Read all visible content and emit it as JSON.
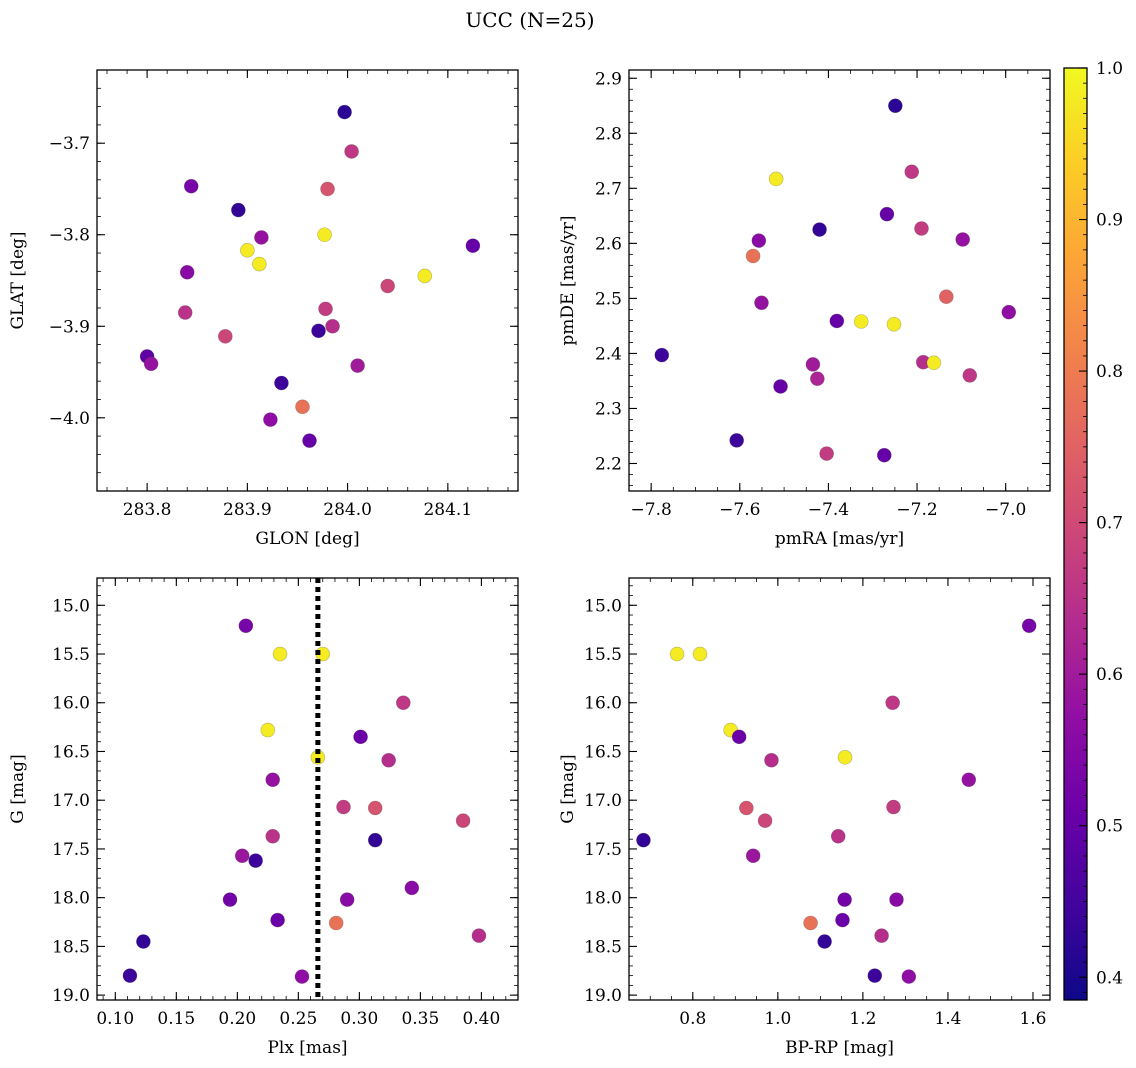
{
  "chart_data": {
    "type": "scatter",
    "title": "UCC (N=25)",
    "colorbar": {
      "min": 0.385,
      "max": 1.0,
      "ticks": [
        0.4,
        0.5,
        0.6,
        0.7,
        0.8,
        0.9,
        1.0
      ],
      "tick_labels": [
        "0.4",
        "0.5",
        "0.6",
        "0.7",
        "0.8",
        "0.9",
        "1.0"
      ],
      "colormap": "plasma"
    },
    "panels": [
      {
        "xlabel": "GLON [deg]",
        "ylabel": "GLAT [deg]",
        "xlim": [
          283.75,
          284.17
        ],
        "ylim": [
          -4.08,
          -3.62
        ],
        "y_inverted": false,
        "xticks": [
          283.8,
          283.9,
          284.0,
          284.1
        ],
        "xtick_labels": [
          "283.8",
          "283.9",
          "284.0",
          "284.1"
        ],
        "yticks": [
          -3.7,
          -3.8,
          -3.9,
          -4.0
        ],
        "ytick_labels": [
          "−3.7",
          "−3.8",
          "−3.9",
          "−4.0"
        ],
        "xminor": 0.02,
        "yminor": 0.02,
        "points": [
          {
            "x": 283.997,
            "y": -3.666,
            "c": 0.42
          },
          {
            "x": 284.004,
            "y": -3.709,
            "c": 0.66
          },
          {
            "x": 283.844,
            "y": -3.747,
            "c": 0.53
          },
          {
            "x": 283.98,
            "y": -3.75,
            "c": 0.72
          },
          {
            "x": 283.891,
            "y": -3.773,
            "c": 0.43
          },
          {
            "x": 283.977,
            "y": -3.8,
            "c": 0.98
          },
          {
            "x": 283.914,
            "y": -3.803,
            "c": 0.58
          },
          {
            "x": 283.9,
            "y": -3.817,
            "c": 0.98
          },
          {
            "x": 284.125,
            "y": -3.812,
            "c": 0.5
          },
          {
            "x": 283.912,
            "y": -3.832,
            "c": 0.98
          },
          {
            "x": 283.84,
            "y": -3.841,
            "c": 0.56
          },
          {
            "x": 284.077,
            "y": -3.845,
            "c": 0.98
          },
          {
            "x": 284.04,
            "y": -3.856,
            "c": 0.69
          },
          {
            "x": 283.838,
            "y": -3.885,
            "c": 0.65
          },
          {
            "x": 283.978,
            "y": -3.881,
            "c": 0.67
          },
          {
            "x": 283.985,
            "y": -3.9,
            "c": 0.64
          },
          {
            "x": 283.971,
            "y": -3.905,
            "c": 0.44
          },
          {
            "x": 283.878,
            "y": -3.911,
            "c": 0.69
          },
          {
            "x": 283.8,
            "y": -3.933,
            "c": 0.49
          },
          {
            "x": 283.804,
            "y": -3.941,
            "c": 0.58
          },
          {
            "x": 284.01,
            "y": -3.943,
            "c": 0.6
          },
          {
            "x": 283.934,
            "y": -3.962,
            "c": 0.44
          },
          {
            "x": 283.955,
            "y": -3.988,
            "c": 0.78
          },
          {
            "x": 283.923,
            "y": -4.002,
            "c": 0.57
          },
          {
            "x": 283.962,
            "y": -4.025,
            "c": 0.5
          }
        ]
      },
      {
        "xlabel": "pmRA [mas/yr]",
        "ylabel": "pmDE [mas/yr]",
        "xlim": [
          -7.85,
          -6.9
        ],
        "ylim": [
          2.15,
          2.915
        ],
        "y_inverted": false,
        "xticks": [
          -7.8,
          -7.6,
          -7.4,
          -7.2,
          -7.0
        ],
        "xtick_labels": [
          "−7.8",
          "−7.6",
          "−7.4",
          "−7.2",
          "−7.0"
        ],
        "yticks": [
          2.2,
          2.3,
          2.4,
          2.5,
          2.6,
          2.7,
          2.8,
          2.9
        ],
        "ytick_labels": [
          "2.2",
          "2.3",
          "2.4",
          "2.5",
          "2.6",
          "2.7",
          "2.8",
          "2.9"
        ],
        "xminor": 0.05,
        "yminor": 0.02,
        "points": [
          {
            "x": -7.249,
            "y": 2.85,
            "c": 0.42
          },
          {
            "x": -7.212,
            "y": 2.73,
            "c": 0.66
          },
          {
            "x": -7.518,
            "y": 2.717,
            "c": 0.98
          },
          {
            "x": -7.268,
            "y": 2.653,
            "c": 0.5
          },
          {
            "x": -7.19,
            "y": 2.627,
            "c": 0.67
          },
          {
            "x": -7.42,
            "y": 2.625,
            "c": 0.43
          },
          {
            "x": -7.097,
            "y": 2.607,
            "c": 0.58
          },
          {
            "x": -7.557,
            "y": 2.605,
            "c": 0.56
          },
          {
            "x": -7.57,
            "y": 2.577,
            "c": 0.78
          },
          {
            "x": -7.134,
            "y": 2.503,
            "c": 0.75
          },
          {
            "x": -7.551,
            "y": 2.492,
            "c": 0.58
          },
          {
            "x": -6.993,
            "y": 2.475,
            "c": 0.57
          },
          {
            "x": -7.381,
            "y": 2.459,
            "c": 0.5
          },
          {
            "x": -7.326,
            "y": 2.458,
            "c": 0.98
          },
          {
            "x": -7.252,
            "y": 2.453,
            "c": 0.98
          },
          {
            "x": -7.776,
            "y": 2.397,
            "c": 0.44
          },
          {
            "x": -7.186,
            "y": 2.384,
            "c": 0.64
          },
          {
            "x": -7.162,
            "y": 2.383,
            "c": 0.98
          },
          {
            "x": -7.435,
            "y": 2.38,
            "c": 0.6
          },
          {
            "x": -7.081,
            "y": 2.36,
            "c": 0.66
          },
          {
            "x": -7.425,
            "y": 2.354,
            "c": 0.62
          },
          {
            "x": -7.508,
            "y": 2.34,
            "c": 0.5
          },
          {
            "x": -7.607,
            "y": 2.242,
            "c": 0.44
          },
          {
            "x": -7.404,
            "y": 2.218,
            "c": 0.67
          },
          {
            "x": -7.274,
            "y": 2.215,
            "c": 0.5
          }
        ]
      },
      {
        "xlabel": "Plx [mas]",
        "ylabel": "G [mag]",
        "xlim": [
          0.085,
          0.43
        ],
        "ylim": [
          14.72,
          19.05
        ],
        "y_inverted": true,
        "xticks": [
          0.1,
          0.15,
          0.2,
          0.25,
          0.3,
          0.35,
          0.4
        ],
        "xtick_labels": [
          "0.10",
          "0.15",
          "0.20",
          "0.25",
          "0.30",
          "0.35",
          "0.40"
        ],
        "yticks": [
          15.0,
          15.5,
          16.0,
          16.5,
          17.0,
          17.5,
          18.0,
          18.5,
          19.0
        ],
        "ytick_labels": [
          "15.0",
          "15.5",
          "16.0",
          "16.5",
          "17.0",
          "17.5",
          "18.0",
          "18.5",
          "19.0"
        ],
        "xminor": 0.01,
        "yminor": 0.1,
        "vline": {
          "x": 0.266,
          "style": "dotted"
        },
        "points": [
          {
            "x": 0.207,
            "y": 15.21,
            "c": 0.53
          },
          {
            "x": 0.235,
            "y": 15.5,
            "c": 0.98
          },
          {
            "x": 0.27,
            "y": 15.5,
            "c": 0.98
          },
          {
            "x": 0.336,
            "y": 16.0,
            "c": 0.66
          },
          {
            "x": 0.225,
            "y": 16.28,
            "c": 0.98
          },
          {
            "x": 0.301,
            "y": 16.35,
            "c": 0.51
          },
          {
            "x": 0.266,
            "y": 16.56,
            "c": 0.98
          },
          {
            "x": 0.324,
            "y": 16.59,
            "c": 0.64
          },
          {
            "x": 0.229,
            "y": 16.79,
            "c": 0.58
          },
          {
            "x": 0.287,
            "y": 17.07,
            "c": 0.67
          },
          {
            "x": 0.313,
            "y": 17.08,
            "c": 0.72
          },
          {
            "x": 0.385,
            "y": 17.21,
            "c": 0.69
          },
          {
            "x": 0.229,
            "y": 17.37,
            "c": 0.65
          },
          {
            "x": 0.313,
            "y": 17.41,
            "c": 0.43
          },
          {
            "x": 0.204,
            "y": 17.57,
            "c": 0.59
          },
          {
            "x": 0.215,
            "y": 17.62,
            "c": 0.44
          },
          {
            "x": 0.343,
            "y": 17.9,
            "c": 0.56
          },
          {
            "x": 0.194,
            "y": 18.02,
            "c": 0.52
          },
          {
            "x": 0.29,
            "y": 18.02,
            "c": 0.56
          },
          {
            "x": 0.233,
            "y": 18.23,
            "c": 0.51
          },
          {
            "x": 0.281,
            "y": 18.26,
            "c": 0.78
          },
          {
            "x": 0.398,
            "y": 18.39,
            "c": 0.64
          },
          {
            "x": 0.123,
            "y": 18.45,
            "c": 0.43
          },
          {
            "x": 0.112,
            "y": 18.8,
            "c": 0.44
          },
          {
            "x": 0.253,
            "y": 18.81,
            "c": 0.57
          }
        ]
      },
      {
        "xlabel": "BP-RP [mag]",
        "ylabel": "G [mag]",
        "xlim": [
          0.65,
          1.64
        ],
        "ylim": [
          14.72,
          19.05
        ],
        "y_inverted": true,
        "xticks": [
          0.8,
          1.0,
          1.2,
          1.4,
          1.6
        ],
        "xtick_labels": [
          "0.8",
          "1.0",
          "1.2",
          "1.4",
          "1.6"
        ],
        "yticks": [
          15.0,
          15.5,
          16.0,
          16.5,
          17.0,
          17.5,
          18.0,
          18.5,
          19.0
        ],
        "ytick_labels": [
          "15.0",
          "15.5",
          "16.0",
          "16.5",
          "17.0",
          "17.5",
          "18.0",
          "18.5",
          "19.0"
        ],
        "xminor": 0.05,
        "yminor": 0.1,
        "points": [
          {
            "x": 1.591,
            "y": 15.21,
            "c": 0.53
          },
          {
            "x": 0.763,
            "y": 15.5,
            "c": 0.98
          },
          {
            "x": 0.817,
            "y": 15.5,
            "c": 0.98
          },
          {
            "x": 1.27,
            "y": 16.0,
            "c": 0.66
          },
          {
            "x": 0.889,
            "y": 16.28,
            "c": 0.98
          },
          {
            "x": 0.909,
            "y": 16.35,
            "c": 0.51
          },
          {
            "x": 1.158,
            "y": 16.56,
            "c": 0.98
          },
          {
            "x": 0.985,
            "y": 16.59,
            "c": 0.64
          },
          {
            "x": 1.449,
            "y": 16.79,
            "c": 0.58
          },
          {
            "x": 0.926,
            "y": 17.08,
            "c": 0.72
          },
          {
            "x": 1.272,
            "y": 17.07,
            "c": 0.67
          },
          {
            "x": 0.97,
            "y": 17.21,
            "c": 0.69
          },
          {
            "x": 1.142,
            "y": 17.37,
            "c": 0.65
          },
          {
            "x": 0.684,
            "y": 17.41,
            "c": 0.43
          },
          {
            "x": 0.942,
            "y": 17.57,
            "c": 0.59
          },
          {
            "x": 1.157,
            "y": 18.02,
            "c": 0.52
          },
          {
            "x": 1.279,
            "y": 18.02,
            "c": 0.56
          },
          {
            "x": 1.152,
            "y": 18.23,
            "c": 0.51
          },
          {
            "x": 1.077,
            "y": 18.26,
            "c": 0.78
          },
          {
            "x": 1.244,
            "y": 18.39,
            "c": 0.64
          },
          {
            "x": 1.11,
            "y": 18.45,
            "c": 0.43
          },
          {
            "x": 1.228,
            "y": 18.8,
            "c": 0.44
          },
          {
            "x": 1.308,
            "y": 18.81,
            "c": 0.57
          }
        ]
      }
    ]
  }
}
